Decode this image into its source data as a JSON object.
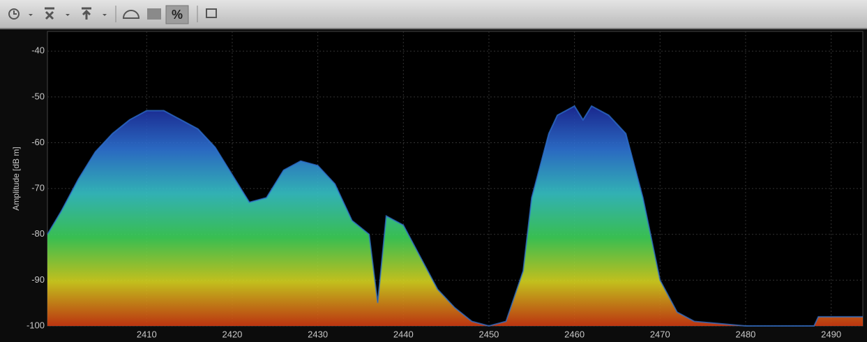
{
  "toolbar": {
    "percent_label": "%"
  },
  "chart_data": {
    "type": "spectrum",
    "y_label": "Amplitude [dB m]",
    "x": [
      2398.4,
      2400,
      2402,
      2404,
      2406,
      2408,
      2410,
      2412,
      2414,
      2416,
      2418,
      2420,
      2422,
      2424,
      2426,
      2428,
      2430,
      2432,
      2434,
      2436,
      2437,
      2438,
      2440,
      2442,
      2444,
      2446,
      2448,
      2450,
      2452,
      2454,
      2455,
      2456,
      2457,
      2458,
      2460,
      2461,
      2462,
      2464,
      2466,
      2467,
      2468,
      2470,
      2472,
      2474,
      2480,
      2488,
      2488.5,
      2493.7
    ],
    "values": [
      -80,
      -75,
      -68,
      -62,
      -58,
      -55,
      -53,
      -53,
      -55,
      -57,
      -61,
      -67,
      -73,
      -72,
      -66,
      -64,
      -65,
      -69,
      -77,
      -80,
      -95,
      -76,
      -78,
      -85,
      -92,
      -96,
      -99,
      -100,
      -99,
      -88,
      -72,
      -65,
      -58,
      -54,
      -52,
      -55,
      -52,
      -54,
      -58,
      -65,
      -72,
      -90,
      -97,
      -99,
      -100,
      -100,
      -98,
      -98
    ],
    "xlim": [
      2398.4,
      2493.7
    ],
    "ylim": [
      -100,
      -35.7
    ],
    "xticks": [
      2410,
      2420,
      2430,
      2440,
      2450,
      2460,
      2470,
      2480,
      2490
    ],
    "yticks": [
      -40,
      -50,
      -60,
      -70,
      -80,
      -90,
      -100
    ],
    "grid": true,
    "colorscale": [
      "#1c2a9c",
      "#2f74d6",
      "#37c4c8",
      "#3fd35a",
      "#d8d420",
      "#d03a12"
    ]
  }
}
